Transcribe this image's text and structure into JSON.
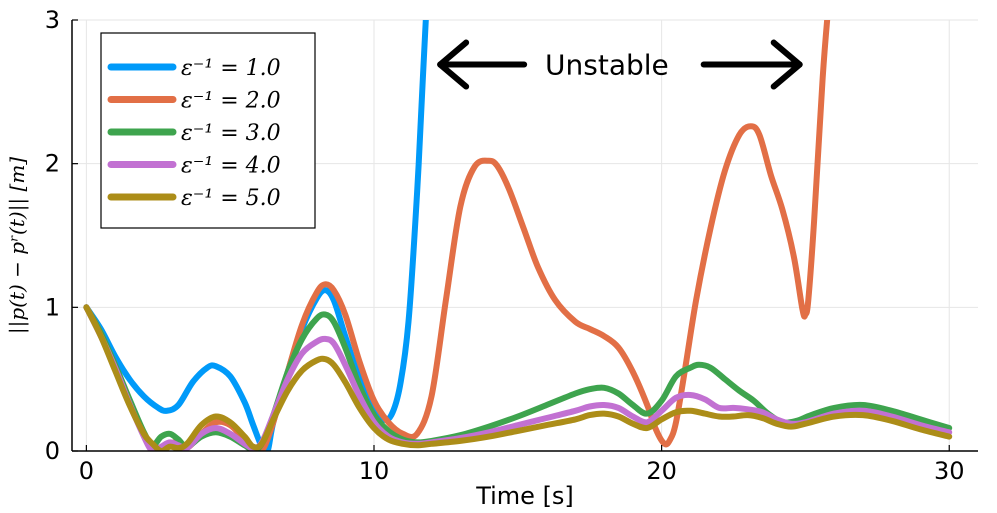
{
  "chart_data": {
    "type": "line",
    "title": "",
    "xlabel": "Time [s]",
    "ylabel": "||p(t) − pʳ(t)||  [m]",
    "xlim": [
      -0.5,
      31
    ],
    "ylim": [
      0,
      3
    ],
    "xticks": [
      0,
      10,
      20,
      30
    ],
    "yticks": [
      0,
      1,
      2,
      3
    ],
    "grid": true,
    "legend_position": "top-left",
    "annotation": {
      "text": "Unstable",
      "arrow_left_x": 12.3,
      "arrow_right_x": 24.8,
      "y": 2.69
    },
    "series": [
      {
        "name": "ε⁻¹ = 1.0",
        "color": "#009af9",
        "x": [
          0,
          0.5,
          1,
          1.5,
          2,
          2.5,
          2.8,
          3.2,
          3.7,
          4.2,
          4.5,
          5,
          5.5,
          5.8,
          6.1,
          6.3,
          6.5,
          7,
          7.5,
          8,
          8.3,
          8.6,
          9,
          9.5,
          10,
          10.3,
          10.6,
          10.9,
          11.2,
          11.5,
          11.7,
          11.8,
          11.85
        ],
        "y": [
          1.0,
          0.85,
          0.66,
          0.5,
          0.38,
          0.3,
          0.28,
          0.32,
          0.48,
          0.58,
          0.59,
          0.52,
          0.34,
          0.18,
          0.03,
          0.0,
          0.2,
          0.55,
          0.85,
          1.06,
          1.12,
          1.05,
          0.8,
          0.5,
          0.3,
          0.22,
          0.25,
          0.45,
          0.9,
          1.8,
          2.6,
          3.0,
          3.2
        ]
      },
      {
        "name": "ε⁻¹ = 2.0",
        "color": "#e26f46",
        "x": [
          0,
          0.5,
          1,
          1.5,
          2,
          2.3,
          2.6,
          2.9,
          3.2,
          3.5,
          4,
          4.5,
          5,
          5.5,
          5.8,
          6.1,
          6.5,
          7,
          7.5,
          8,
          8.3,
          8.6,
          9,
          9.5,
          10,
          10.5,
          11,
          11.5,
          12,
          12.5,
          13,
          13.5,
          14,
          14.3,
          14.7,
          15.2,
          15.7,
          16.3,
          17,
          17.5,
          18,
          18.5,
          19,
          19.5,
          19.8,
          20.1,
          20.3,
          20.5,
          20.8,
          21.2,
          21.7,
          22.2,
          22.7,
          23.1,
          23.4,
          23.8,
          24.2,
          24.6,
          24.9,
          25.0,
          25.1,
          25.3,
          25.6,
          25.8,
          25.9
        ],
        "y": [
          1.0,
          0.82,
          0.58,
          0.35,
          0.12,
          0.02,
          0.0,
          0.05,
          0.06,
          0.02,
          0.12,
          0.2,
          0.18,
          0.08,
          0.02,
          0.0,
          0.2,
          0.55,
          0.88,
          1.1,
          1.16,
          1.12,
          0.95,
          0.62,
          0.35,
          0.2,
          0.12,
          0.12,
          0.38,
          1.05,
          1.7,
          1.98,
          2.02,
          1.98,
          1.82,
          1.55,
          1.28,
          1.05,
          0.9,
          0.85,
          0.8,
          0.72,
          0.55,
          0.32,
          0.15,
          0.05,
          0.08,
          0.2,
          0.55,
          1.05,
          1.55,
          1.95,
          2.2,
          2.26,
          2.2,
          1.92,
          1.68,
          1.35,
          0.98,
          0.95,
          1.05,
          1.6,
          2.6,
          3.1,
          3.3
        ]
      },
      {
        "name": "ε⁻¹ = 3.0",
        "color": "#3ea44e",
        "x": [
          0,
          0.5,
          1,
          1.5,
          2,
          2.3,
          2.6,
          2.9,
          3.2,
          3.5,
          4,
          4.5,
          5,
          5.5,
          5.8,
          6.1,
          6.5,
          7,
          7.5,
          8,
          8.3,
          8.6,
          9,
          9.5,
          10,
          10.5,
          11,
          11.5,
          12,
          13,
          14,
          15,
          16,
          17,
          17.5,
          18,
          18.5,
          19,
          19.5,
          20,
          20.5,
          21,
          21.3,
          21.7,
          22.2,
          22.7,
          23.2,
          23.7,
          24.2,
          24.7,
          25.2,
          26,
          27,
          28,
          29,
          30
        ],
        "y": [
          1.0,
          0.82,
          0.6,
          0.36,
          0.13,
          0.04,
          0.1,
          0.12,
          0.08,
          0.03,
          0.1,
          0.13,
          0.1,
          0.04,
          0.01,
          0.05,
          0.25,
          0.55,
          0.78,
          0.92,
          0.95,
          0.9,
          0.72,
          0.45,
          0.25,
          0.14,
          0.08,
          0.06,
          0.07,
          0.11,
          0.17,
          0.24,
          0.32,
          0.4,
          0.43,
          0.44,
          0.4,
          0.32,
          0.26,
          0.35,
          0.52,
          0.58,
          0.6,
          0.58,
          0.5,
          0.42,
          0.35,
          0.26,
          0.2,
          0.21,
          0.25,
          0.3,
          0.32,
          0.28,
          0.22,
          0.16
        ]
      },
      {
        "name": "ε⁻¹ = 4.0",
        "color": "#c271d2",
        "x": [
          0,
          0.5,
          1,
          1.5,
          2,
          2.3,
          2.6,
          2.9,
          3.2,
          3.5,
          4,
          4.5,
          5,
          5.5,
          5.8,
          6.1,
          6.5,
          7,
          7.5,
          8,
          8.3,
          8.6,
          9,
          9.5,
          10,
          10.5,
          11,
          11.5,
          12,
          13,
          14,
          15,
          16,
          17,
          17.5,
          18,
          18.5,
          19,
          19.5,
          20,
          20.5,
          21,
          21.5,
          22,
          22.5,
          23,
          23.5,
          24,
          24.5,
          25,
          26,
          27,
          28,
          29,
          30
        ],
        "y": [
          1.0,
          0.8,
          0.58,
          0.33,
          0.1,
          0.0,
          0.03,
          0.06,
          0.04,
          0.02,
          0.12,
          0.16,
          0.12,
          0.05,
          0.02,
          0.06,
          0.25,
          0.5,
          0.68,
          0.76,
          0.78,
          0.75,
          0.6,
          0.38,
          0.2,
          0.1,
          0.06,
          0.05,
          0.06,
          0.09,
          0.13,
          0.18,
          0.23,
          0.28,
          0.31,
          0.32,
          0.3,
          0.24,
          0.2,
          0.28,
          0.37,
          0.39,
          0.36,
          0.3,
          0.3,
          0.29,
          0.27,
          0.22,
          0.19,
          0.2,
          0.26,
          0.28,
          0.24,
          0.18,
          0.13
        ]
      },
      {
        "name": "ε⁻¹ = 5.0",
        "color": "#ac8d18",
        "x": [
          0,
          0.5,
          1,
          1.5,
          2,
          2.3,
          2.6,
          2.9,
          3.2,
          3.5,
          4,
          4.5,
          5,
          5.5,
          5.8,
          6.1,
          6.5,
          7,
          7.5,
          8,
          8.3,
          8.6,
          9,
          9.5,
          10,
          10.5,
          11,
          11.5,
          12,
          13,
          14,
          15,
          16,
          17,
          17.5,
          18,
          18.5,
          19,
          19.5,
          20,
          20.5,
          21,
          21.5,
          22,
          22.5,
          23,
          23.5,
          24,
          24.5,
          25,
          26,
          27,
          28,
          29,
          30
        ],
        "y": [
          1.0,
          0.8,
          0.56,
          0.32,
          0.12,
          0.05,
          0.0,
          0.03,
          0.02,
          0.05,
          0.18,
          0.24,
          0.2,
          0.1,
          0.03,
          0.05,
          0.22,
          0.42,
          0.56,
          0.63,
          0.64,
          0.6,
          0.48,
          0.3,
          0.16,
          0.08,
          0.05,
          0.04,
          0.05,
          0.07,
          0.1,
          0.14,
          0.18,
          0.22,
          0.25,
          0.26,
          0.24,
          0.19,
          0.16,
          0.22,
          0.27,
          0.28,
          0.26,
          0.24,
          0.24,
          0.25,
          0.23,
          0.19,
          0.17,
          0.19,
          0.24,
          0.25,
          0.21,
          0.15,
          0.1
        ]
      }
    ]
  }
}
